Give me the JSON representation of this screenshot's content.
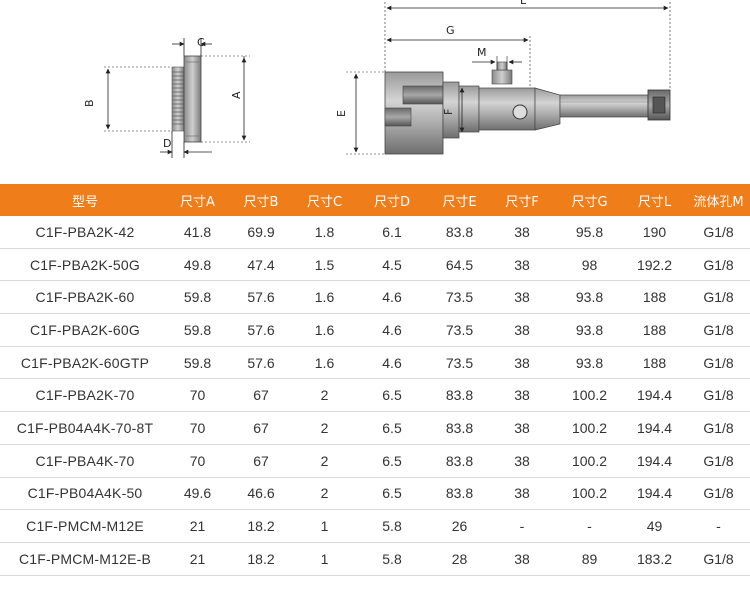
{
  "drawing": {
    "left_view": {
      "labels": {
        "c": "C",
        "a": "A",
        "b": "B",
        "d": "D"
      }
    },
    "right_view": {
      "labels": {
        "l": "L",
        "g": "G",
        "m": "M",
        "e": "E",
        "f": "F"
      }
    }
  },
  "table": {
    "header_color": "#ef7d1a",
    "columns": [
      "型号",
      "尺寸A",
      "尺寸B",
      "尺寸C",
      "尺寸D",
      "尺寸E",
      "尺寸F",
      "尺寸G",
      "尺寸L",
      "流体孔M"
    ],
    "rows": [
      [
        "C1F-PBA2K-42",
        "41.8",
        "69.9",
        "1.8",
        "6.1",
        "83.8",
        "38",
        "95.8",
        "190",
        "G1/8"
      ],
      [
        "C1F-PBA2K-50G",
        "49.8",
        "47.4",
        "1.5",
        "4.5",
        "64.5",
        "38",
        "98",
        "192.2",
        "G1/8"
      ],
      [
        "C1F-PBA2K-60",
        "59.8",
        "57.6",
        "1.6",
        "4.6",
        "73.5",
        "38",
        "93.8",
        "188",
        "G1/8"
      ],
      [
        "C1F-PBA2K-60G",
        "59.8",
        "57.6",
        "1.6",
        "4.6",
        "73.5",
        "38",
        "93.8",
        "188",
        "G1/8"
      ],
      [
        "C1F-PBA2K-60GTP",
        "59.8",
        "57.6",
        "1.6",
        "4.6",
        "73.5",
        "38",
        "93.8",
        "188",
        "G1/8"
      ],
      [
        "C1F-PBA2K-70",
        "70",
        "67",
        "2",
        "6.5",
        "83.8",
        "38",
        "100.2",
        "194.4",
        "G1/8"
      ],
      [
        "C1F-PB04A4K-70-8T",
        "70",
        "67",
        "2",
        "6.5",
        "83.8",
        "38",
        "100.2",
        "194.4",
        "G1/8"
      ],
      [
        "C1F-PBA4K-70",
        "70",
        "67",
        "2",
        "6.5",
        "83.8",
        "38",
        "100.2",
        "194.4",
        "G1/8"
      ],
      [
        "C1F-PB04A4K-50",
        "49.6",
        "46.6",
        "2",
        "6.5",
        "83.8",
        "38",
        "100.2",
        "194.4",
        "G1/8"
      ],
      [
        "C1F-PMCM-M12E",
        "21",
        "18.2",
        "1",
        "5.8",
        "26",
        "-",
        "-",
        "49",
        "-"
      ],
      [
        "C1F-PMCM-M12E-B",
        "21",
        "18.2",
        "1",
        "5.8",
        "28",
        "38",
        "89",
        "183.2",
        "G1/8"
      ]
    ]
  }
}
